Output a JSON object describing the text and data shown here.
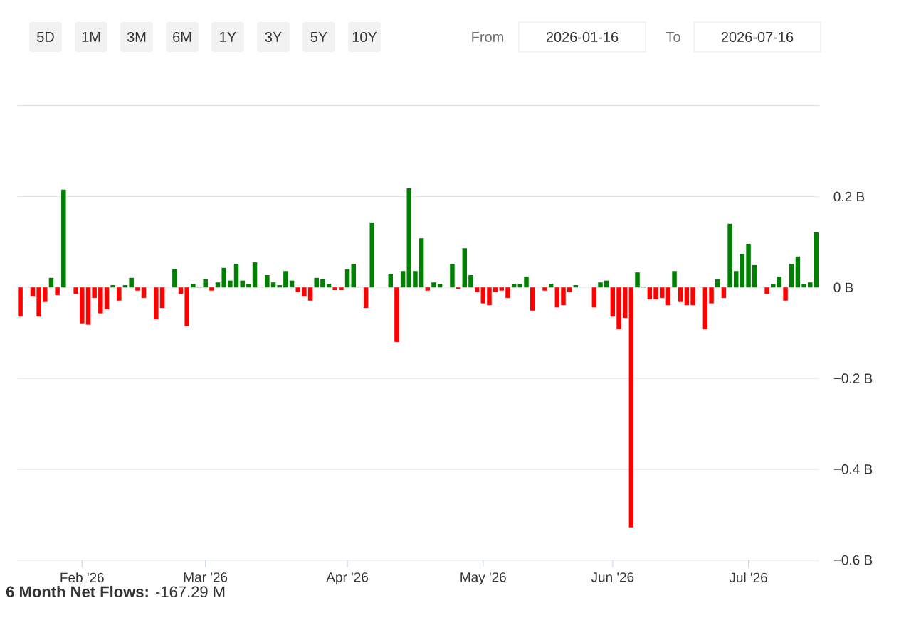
{
  "chart_data": {
    "type": "bar",
    "categories": [
      null,
      null,
      null,
      null,
      null,
      null,
      null,
      null,
      null,
      null,
      "Feb '26",
      null,
      null,
      null,
      null,
      null,
      null,
      null,
      null,
      null,
      null,
      null,
      null,
      null,
      null,
      null,
      null,
      null,
      null,
      null,
      "Mar '26",
      null,
      null,
      null,
      null,
      null,
      null,
      null,
      null,
      null,
      null,
      null,
      null,
      null,
      null,
      null,
      null,
      null,
      null,
      null,
      null,
      null,
      null,
      "Apr '26",
      null,
      null,
      null,
      null,
      null,
      null,
      null,
      null,
      null,
      null,
      null,
      null,
      null,
      null,
      null,
      null,
      null,
      null,
      null,
      null,
      null,
      "May '26",
      null,
      null,
      null,
      null,
      null,
      null,
      null,
      null,
      null,
      null,
      null,
      null,
      null,
      null,
      null,
      null,
      null,
      null,
      null,
      null,
      "Jun '26",
      null,
      null,
      null,
      null,
      null,
      null,
      null,
      null,
      null,
      null,
      null,
      null,
      null,
      null,
      null,
      null,
      null,
      null,
      null,
      null,
      null,
      "Jul '26",
      null,
      null,
      null,
      null,
      null,
      null,
      null,
      null,
      null,
      null,
      null
    ],
    "values": [
      -0.064,
      null,
      -0.02,
      -0.064,
      -0.032,
      0.021,
      -0.017,
      0.215,
      null,
      -0.014,
      -0.079,
      -0.082,
      -0.023,
      -0.057,
      -0.048,
      0.005,
      -0.029,
      0.005,
      0.021,
      -0.007,
      -0.023,
      null,
      -0.07,
      -0.045,
      null,
      0.04,
      -0.014,
      -0.085,
      0.008,
      0.002,
      0.018,
      -0.007,
      0.011,
      0.043,
      0.015,
      0.052,
      0.015,
      0.008,
      0.055,
      null,
      0.027,
      0.011,
      0.005,
      0.036,
      0.015,
      -0.01,
      -0.02,
      -0.029,
      0.021,
      0.018,
      0.008,
      -0.006,
      -0.006,
      0.04,
      0.052,
      null,
      -0.045,
      0.143,
      null,
      null,
      0.03,
      -0.12,
      0.036,
      0.218,
      0.036,
      0.108,
      -0.007,
      0.011,
      0.008,
      null,
      0.052,
      -0.003,
      0.086,
      0.027,
      -0.01,
      -0.035,
      -0.039,
      -0.01,
      -0.007,
      -0.023,
      0.008,
      0.008,
      0.024,
      -0.051,
      null,
      -0.007,
      0.008,
      -0.044,
      -0.039,
      -0.01,
      0.005,
      null,
      null,
      -0.044,
      0.011,
      0.015,
      -0.064,
      -0.092,
      -0.067,
      -0.528,
      0.033,
      0.002,
      -0.026,
      -0.026,
      -0.023,
      -0.039,
      0.036,
      -0.032,
      -0.039,
      -0.039,
      null,
      -0.092,
      -0.035,
      0.018,
      -0.023,
      0.14,
      0.036,
      0.074,
      0.096,
      0.049,
      null,
      -0.014,
      0.008,
      0.024,
      -0.029,
      0.052,
      0.068,
      0.008,
      0.011,
      0.121
    ],
    "colors": [
      "#ff0000",
      null,
      "#ff0000",
      "#ff0000",
      "#ff0000",
      "#008000",
      "#ff0000",
      "#008000",
      null,
      "#ff0000",
      "#ff0000",
      "#ff0000",
      "#ff0000",
      "#ff0000",
      "#ff0000",
      "#008000",
      "#ff0000",
      "#008000",
      "#008000",
      "#ff0000",
      "#ff0000",
      null,
      "#ff0000",
      "#ff0000",
      null,
      "#008000",
      "#ff0000",
      "#ff0000",
      "#008000",
      "#008000",
      "#008000",
      "#ff0000",
      "#008000",
      "#008000",
      "#008000",
      "#008000",
      "#008000",
      "#008000",
      "#008000",
      null,
      "#008000",
      "#008000",
      "#008000",
      "#008000",
      "#008000",
      "#ff0000",
      "#ff0000",
      "#ff0000",
      "#008000",
      "#008000",
      "#008000",
      "#ff0000",
      "#ff0000",
      "#008000",
      "#008000",
      null,
      "#ff0000",
      "#008000",
      null,
      null,
      "#008000",
      "#ff0000",
      "#008000",
      "#008000",
      "#008000",
      "#008000",
      "#ff0000",
      "#008000",
      "#008000",
      null,
      "#008000",
      "#ff0000",
      "#008000",
      "#008000",
      "#ff0000",
      "#ff0000",
      "#ff0000",
      "#ff0000",
      "#ff0000",
      "#ff0000",
      "#008000",
      "#008000",
      "#008000",
      "#ff0000",
      null,
      "#ff0000",
      "#008000",
      "#ff0000",
      "#ff0000",
      "#ff0000",
      "#008000",
      null,
      null,
      "#ff0000",
      "#008000",
      "#008000",
      "#ff0000",
      "#ff0000",
      "#ff0000",
      "#ff0000",
      "#008000",
      "#008000",
      "#ff0000",
      "#ff0000",
      "#ff0000",
      "#ff0000",
      "#008000",
      "#ff0000",
      "#ff0000",
      "#ff0000",
      null,
      "#ff0000",
      "#ff0000",
      "#008000",
      "#ff0000",
      "#008000",
      "#008000",
      "#008000",
      "#008000",
      "#008000",
      null,
      "#ff0000",
      "#008000",
      "#008000",
      "#ff0000",
      "#008000",
      "#008000",
      "#008000",
      "#008000",
      "#008000"
    ],
    "ylim": [
      -0.6,
      0.4
    ],
    "yticks": [
      {
        "value": -0.6,
        "label": "−0.6 B"
      },
      {
        "value": -0.4,
        "label": "−0.4 B"
      },
      {
        "value": -0.2,
        "label": "−0.2 B"
      },
      {
        "value": 0,
        "label": "0 B"
      },
      {
        "value": 0.2,
        "label": "0.2 B"
      },
      {
        "value": 0.4,
        "label": null
      }
    ],
    "grid": "y",
    "annotations": [
      "5D",
      "1M",
      "3M",
      "6M",
      "1Y",
      "3Y",
      "5Y",
      "10Y",
      "From",
      "2026-01-16",
      "To",
      "2026-07-16",
      "**6 Month Net Flows:** -167.29 M"
    ]
  }
}
